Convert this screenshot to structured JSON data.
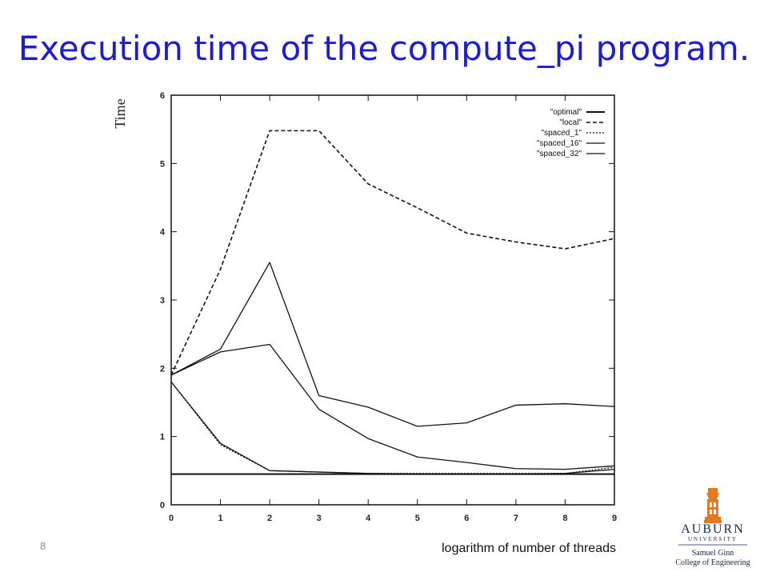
{
  "slide": {
    "title": "Execution time of the compute_pi program.",
    "number": "8"
  },
  "logo": {
    "name": "AUBURN",
    "subtitle": "UNIVERSITY",
    "college_line1": "Samuel Ginn",
    "college_line2": "College of Engineering",
    "colors": {
      "navy": "#0b2a5a",
      "orange": "#e87722"
    }
  },
  "chart_data": {
    "type": "line",
    "title": "",
    "xlabel": "logarithm of number of threads",
    "ylabel": "Time",
    "x": [
      0,
      1,
      2,
      3,
      4,
      5,
      6,
      7,
      8,
      9
    ],
    "xlim": [
      0,
      9
    ],
    "ylim": [
      0,
      6
    ],
    "xticks": [
      "0",
      "1",
      "2",
      "3",
      "4",
      "5",
      "6",
      "7",
      "8",
      "9"
    ],
    "yticks": [
      "0",
      "1",
      "2",
      "3",
      "4",
      "5",
      "6"
    ],
    "grid": false,
    "legend_position": "top-right",
    "series": [
      {
        "name": "\"optimal\"",
        "style": "solid-thick",
        "values": [
          0.45,
          0.45,
          0.45,
          0.45,
          0.45,
          0.45,
          0.45,
          0.45,
          0.45,
          0.45
        ]
      },
      {
        "name": "\"local\"",
        "style": "dashed",
        "values": [
          1.9,
          3.45,
          5.48,
          5.48,
          4.7,
          4.35,
          3.98,
          3.85,
          3.75,
          3.9
        ]
      },
      {
        "name": "\"spaced_1\"",
        "style": "dotted",
        "values": [
          1.8,
          0.88,
          0.5,
          0.48,
          0.46,
          0.46,
          0.46,
          0.46,
          0.46,
          0.55
        ]
      },
      {
        "name": "\"spaced_16\"",
        "style": "solid",
        "values": [
          1.9,
          2.28,
          3.55,
          1.6,
          1.43,
          1.15,
          1.2,
          1.46,
          1.48,
          1.44
        ]
      },
      {
        "name": "\"spaced_32\"",
        "style": "solid",
        "values": [
          1.9,
          2.24,
          2.35,
          1.4,
          0.97,
          0.7,
          0.62,
          0.53,
          0.52,
          0.57
        ]
      }
    ],
    "extra_unlabeled_series": [
      {
        "style": "solid",
        "values": [
          1.8,
          0.9,
          0.5,
          0.48,
          0.46,
          0.45,
          0.45,
          0.45,
          0.46,
          0.52
        ]
      }
    ]
  }
}
